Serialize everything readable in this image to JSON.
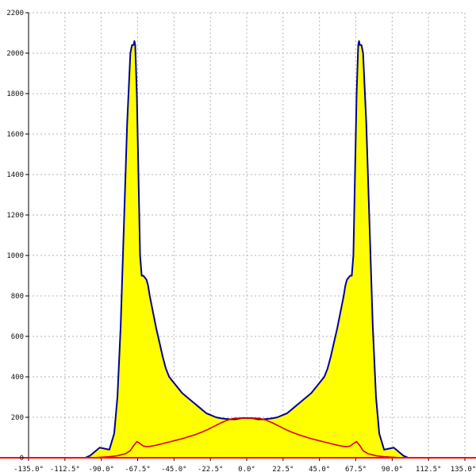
{
  "chart_data": {
    "type": "area",
    "title": "",
    "xlabel": "",
    "ylabel": "",
    "xlim": [
      -135,
      135
    ],
    "ylim": [
      0,
      2200
    ],
    "grid": true,
    "colors": {
      "fill": "#ffff00",
      "outline": "#000099",
      "inner_line": "#dd0000",
      "baseline": "#ff0000",
      "grid": "#b5b5b5"
    },
    "x_ticks": [
      {
        "value": -135,
        "label": "-135.0°"
      },
      {
        "value": -112.5,
        "label": "-112.5°"
      },
      {
        "value": -90,
        "label": "-90.0°"
      },
      {
        "value": -67.5,
        "label": "-67.5°"
      },
      {
        "value": -45,
        "label": "-45.0°"
      },
      {
        "value": -22.5,
        "label": "-22.5°"
      },
      {
        "value": 0,
        "label": "0.0°"
      },
      {
        "value": 22.5,
        "label": "22.5°"
      },
      {
        "value": 45,
        "label": "45.0°"
      },
      {
        "value": 67.5,
        "label": "67.5°"
      },
      {
        "value": 90,
        "label": "90.0°"
      },
      {
        "value": 112.5,
        "label": "112.5°"
      },
      {
        "value": 135,
        "label": "135.0°"
      }
    ],
    "y_ticks": [
      {
        "value": 0,
        "label": "0"
      },
      {
        "value": 200,
        "label": "200"
      },
      {
        "value": 400,
        "label": "400"
      },
      {
        "value": 600,
        "label": "600"
      },
      {
        "value": 800,
        "label": "800"
      },
      {
        "value": 1000,
        "label": "1000"
      },
      {
        "value": 1200,
        "label": "1200"
      },
      {
        "value": 1400,
        "label": "1400"
      },
      {
        "value": 1600,
        "label": "1600"
      },
      {
        "value": 1800,
        "label": "1800"
      },
      {
        "value": 2000,
        "label": "2000"
      },
      {
        "value": 2200,
        "label": "2200"
      }
    ],
    "series": [
      {
        "style": "filled-area",
        "x": [
          -100,
          -97,
          -94,
          -91,
          -88,
          -85,
          -82,
          -80,
          -78,
          -76,
          -74,
          -72,
          -71,
          -70,
          -69.5,
          -69,
          -68,
          -67,
          -66.5,
          -66,
          -65,
          -64,
          -63,
          -62,
          -61,
          -60,
          -58,
          -56,
          -54,
          -52,
          -50,
          -48,
          -46,
          -44,
          -42,
          -40,
          -37,
          -34,
          -31,
          -28,
          -25,
          -22,
          -19,
          -16,
          -13,
          -10,
          -7,
          -4,
          -2,
          0,
          2,
          4,
          7,
          10,
          13,
          16,
          19,
          22,
          25,
          28,
          31,
          34,
          37,
          40,
          42,
          44,
          46,
          48,
          50,
          52,
          54,
          56,
          58,
          60,
          61,
          62,
          63,
          64,
          65,
          66,
          66.5,
          67,
          68,
          69,
          69.5,
          70,
          71,
          72,
          74,
          76,
          78,
          80,
          82,
          85,
          88,
          91,
          94,
          97,
          100
        ],
        "values": [
          0,
          10,
          30,
          50,
          45,
          40,
          120,
          300,
          650,
          1150,
          1650,
          2000,
          2040,
          2040,
          2060,
          2040,
          1800,
          1400,
          1200,
          1000,
          900,
          900,
          890,
          880,
          850,
          800,
          720,
          640,
          570,
          500,
          440,
          400,
          380,
          360,
          340,
          320,
          300,
          280,
          260,
          240,
          220,
          210,
          200,
          195,
          192,
          190,
          190,
          195,
          196,
          196,
          196,
          195,
          190,
          190,
          192,
          195,
          200,
          210,
          220,
          240,
          260,
          280,
          300,
          320,
          340,
          360,
          380,
          400,
          440,
          500,
          570,
          640,
          720,
          800,
          850,
          880,
          890,
          900,
          900,
          1000,
          1200,
          1400,
          1800,
          2040,
          2060,
          2040,
          2040,
          2000,
          1650,
          1150,
          650,
          300,
          120,
          40,
          45,
          50,
          30,
          10,
          0
        ]
      },
      {
        "style": "line",
        "x": [
          -100,
          -95,
          -90,
          -85,
          -80,
          -75,
          -72,
          -70,
          -68,
          -66,
          -64,
          -62,
          -60,
          -56,
          -52,
          -48,
          -44,
          -40,
          -36,
          -32,
          -28,
          -24,
          -20,
          -16,
          -12,
          -8,
          -4,
          0,
          4,
          8,
          12,
          16,
          20,
          24,
          28,
          32,
          36,
          40,
          44,
          48,
          52,
          56,
          60,
          62,
          64,
          66,
          68,
          70,
          72,
          75,
          80,
          85,
          90,
          95,
          100
        ],
        "values": [
          0,
          0,
          3,
          5,
          10,
          20,
          35,
          60,
          80,
          70,
          58,
          55,
          56,
          62,
          70,
          78,
          86,
          94,
          104,
          114,
          126,
          140,
          156,
          172,
          186,
          195,
          196,
          196,
          196,
          195,
          186,
          172,
          156,
          140,
          126,
          114,
          104,
          94,
          86,
          78,
          70,
          62,
          56,
          55,
          58,
          70,
          80,
          60,
          35,
          20,
          10,
          5,
          3,
          0,
          0
        ]
      }
    ]
  }
}
